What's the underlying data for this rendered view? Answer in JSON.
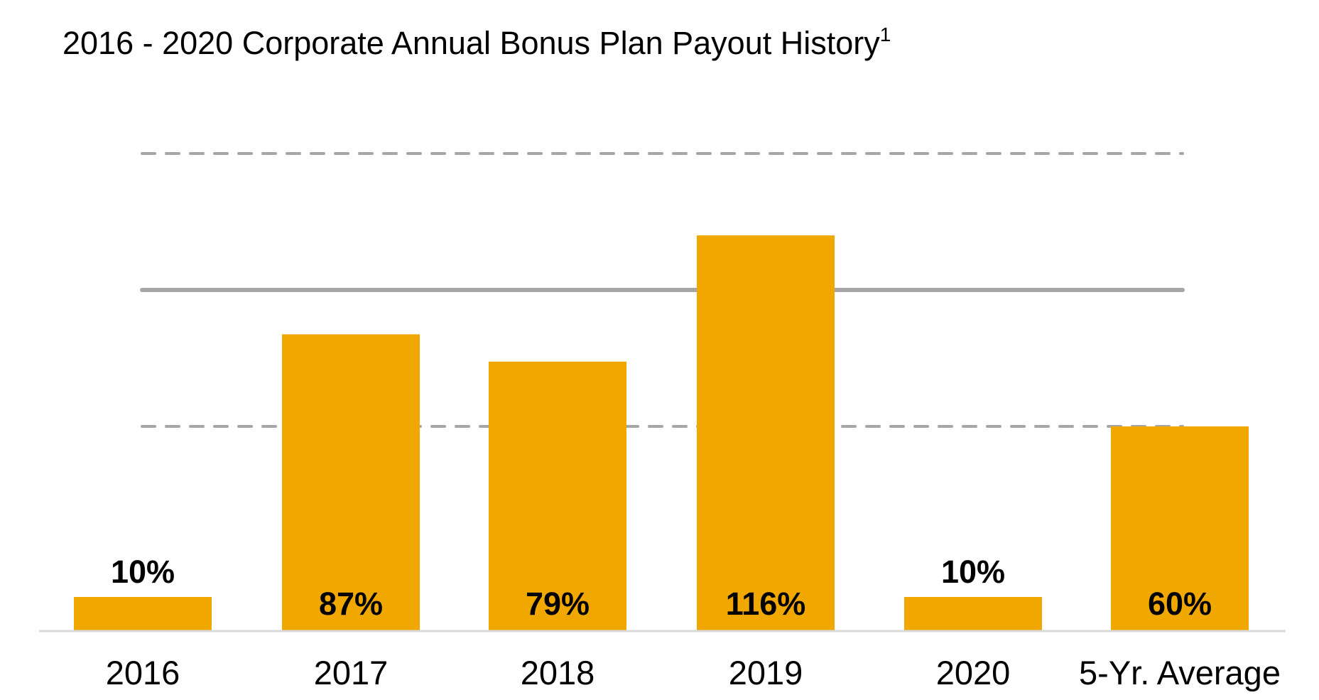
{
  "chart_data": {
    "type": "bar",
    "title": "2016 - 2020 Corporate Annual Bonus Plan Payout History",
    "title_superscript": "1",
    "categories": [
      "2016",
      "2017",
      "2018",
      "2019",
      "2020",
      "5-Yr. Average"
    ],
    "values": [
      10,
      87,
      79,
      116,
      10,
      60
    ],
    "value_labels": [
      "10%",
      "87%",
      "79%",
      "116%",
      "10%",
      "60%"
    ],
    "unit": "%",
    "ylim": [
      0,
      140
    ],
    "reference_lines": [
      {
        "value": 60,
        "style": "dashed"
      },
      {
        "value": 100,
        "style": "solid"
      },
      {
        "value": 140,
        "style": "dashed"
      }
    ],
    "bar_color": "#F0A800",
    "reference_line_color": "#A6A6A6",
    "baseline_color": "#D9D9D9",
    "grid": false,
    "legend": "none"
  }
}
